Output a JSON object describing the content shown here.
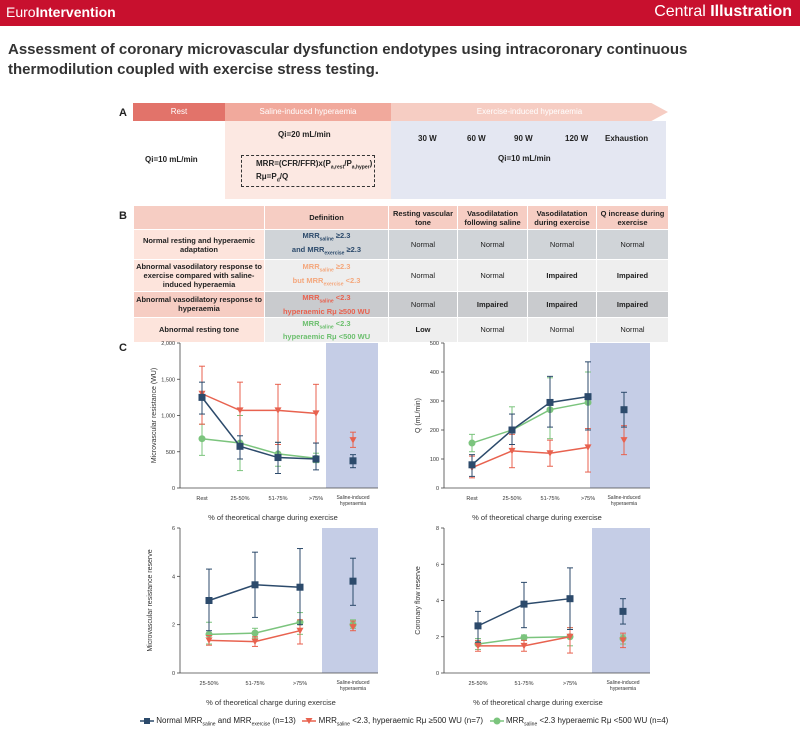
{
  "header": {
    "brand_prefix": "Euro",
    "brand_bold": "Intervention",
    "ci_prefix": "Central ",
    "ci_bold": "Illustration"
  },
  "title": "Assessment of coronary microvascular dysfunction endotypes using intracoronary continuous thermodilution coupled with exercise stress testing.",
  "panel_a": {
    "label": "A",
    "phases": [
      "Rest",
      "Saline-induced hyperaemia",
      "Exercise-induced hyperaemia"
    ],
    "rest_qi": "Qi=10 mL/min",
    "saline_qi": "Qi=20 mL/min",
    "mrr_formula": "MRR=(CFR/FFR)x(P",
    "mrr_formula_sub1": "a,rest",
    "mrr_formula_mid": "/P",
    "mrr_formula_sub2": "a,hyper",
    "mrr_formula_end": ")",
    "rmu_formula": "Rμ=P",
    "rmu_sub": "d",
    "rmu_end": "/Q",
    "exercise_levels": [
      "30 W",
      "60 W",
      "90 W",
      "120 W",
      "Exhaustion"
    ],
    "exercise_qi": "Qi=10 mL/min"
  },
  "panel_b": {
    "label": "B",
    "headers": [
      "",
      "Definition",
      "Resting vascular tone",
      "Vasodilatation following saline",
      "Vasodilatation during exercise",
      "Q increase during exercise"
    ],
    "rows": [
      {
        "name": "Normal resting and hyperaemic adaptation",
        "def1": "MRR",
        "def1_sub": "saline",
        "def1_end": " ≥2.3",
        "def2": "and MRR",
        "def2_sub": "exercise",
        "def2_end": " ≥2.3",
        "cells": [
          "Normal",
          "Normal",
          "Normal",
          "Normal"
        ]
      },
      {
        "name": "Abnormal vasodilatory response to exercise compared with saline-induced hyperaemia",
        "def1": "MRR",
        "def1_sub": "saline",
        "def1_end": " ≥2.3",
        "def2": "but MRR",
        "def2_sub": "exercise",
        "def2_end": " <2.3",
        "cells": [
          "Normal",
          "Normal",
          "Impaired",
          "Impaired"
        ]
      },
      {
        "name": "Abnormal vasodilatory response to hyperaemia",
        "def1": "MRR",
        "def1_sub": "saline",
        "def1_end": " <2.3",
        "def2": "hyperaemic Rμ ≥500 WU",
        "def2_sub": "",
        "def2_end": "",
        "cells": [
          "Normal",
          "Impaired",
          "Impaired",
          "Impaired"
        ]
      },
      {
        "name": "Abnormal resting tone",
        "def1": "MRR",
        "def1_sub": "saline",
        "def1_end": " <2.3",
        "def2": "hyperaemic Rμ <500 WU",
        "def2_sub": "",
        "def2_end": "",
        "cells": [
          "Low",
          "Normal",
          "Normal",
          "Normal"
        ]
      }
    ]
  },
  "panel_c": {
    "label": "C",
    "saline_label_1": "Saline-induced",
    "saline_label_2": "hyperaemia"
  },
  "colors": {
    "normal": "#2c4a6b",
    "high_rmu": "#e8624f",
    "low_rmu": "#7bc47d",
    "saline_zone": "#c5cde6"
  },
  "chart_data": [
    {
      "type": "line",
      "ylabel": "Microvascular resistance (WU)",
      "xlabel": "% of theoretical charge during exercise",
      "categories": [
        "Rest",
        "25-50%",
        "51-75%",
        ">75%"
      ],
      "ylim": [
        0,
        2000
      ],
      "yticks": [
        "0",
        "500",
        "1,000",
        "1,500",
        "2,000"
      ],
      "series": [
        {
          "key": "normal",
          "values": [
            1250,
            575,
            420,
            400
          ],
          "err": [
            [
              1020,
              1460
            ],
            [
              400,
              720
            ],
            [
              200,
              630
            ],
            [
              250,
              620
            ]
          ],
          "saline": 375,
          "saline_err": [
            280,
            460
          ]
        },
        {
          "key": "high_rmu",
          "values": [
            1300,
            1070,
            1070,
            1030
          ],
          "err": [
            [
              880,
              1680
            ],
            [
              560,
              1460
            ],
            [
              600,
              1430
            ],
            [
              620,
              1430
            ]
          ],
          "saline": 660,
          "saline_err": [
            560,
            770
          ]
        },
        {
          "key": "low_rmu",
          "values": [
            680,
            620,
            470,
            410
          ],
          "err": [
            [
              450,
              880
            ],
            [
              240,
              1000
            ],
            [
              300,
              630
            ],
            [
              350,
              480
            ]
          ],
          "saline": null,
          "saline_err": null
        }
      ]
    },
    {
      "type": "line",
      "ylabel": "Q (mL/min)",
      "xlabel": "% of theoretical charge during exercise",
      "categories": [
        "Rest",
        "25-50%",
        "51-75%",
        ">75%"
      ],
      "ylim": [
        0,
        500
      ],
      "yticks": [
        "0",
        "100",
        "200",
        "300",
        "400",
        "500"
      ],
      "series": [
        {
          "key": "normal",
          "values": [
            80,
            200,
            295,
            315
          ],
          "err": [
            [
              40,
              115
            ],
            [
              150,
              255
            ],
            [
              210,
              385
            ],
            [
              200,
              435
            ]
          ],
          "saline": 270,
          "saline_err": [
            210,
            330
          ]
        },
        {
          "key": "high_rmu",
          "values": [
            70,
            128,
            120,
            140
          ],
          "err": [
            [
              35,
              110
            ],
            [
              70,
              185
            ],
            [
              75,
              165
            ],
            [
              55,
              205
            ]
          ],
          "saline": 165,
          "saline_err": [
            115,
            215
          ]
        },
        {
          "key": "low_rmu",
          "values": [
            155,
            200,
            270,
            295
          ],
          "err": [
            [
              125,
              185
            ],
            [
              150,
              280
            ],
            [
              170,
              380
            ],
            [
              200,
              400
            ]
          ],
          "saline": null,
          "saline_err": null
        }
      ]
    },
    {
      "type": "line",
      "ylabel": "Microvascular resistance reserve",
      "xlabel": "% of theoretical charge during exercise",
      "categories": [
        "25-50%",
        "51-75%",
        ">75%"
      ],
      "ylim": [
        0,
        6
      ],
      "yticks": [
        "0",
        "2",
        "4",
        "6"
      ],
      "series": [
        {
          "key": "normal",
          "values": [
            3.0,
            3.65,
            3.55
          ],
          "err": [
            [
              1.75,
              4.3
            ],
            [
              2.3,
              5.0
            ],
            [
              2.0,
              5.15
            ]
          ],
          "saline": 3.8,
          "saline_err": [
            2.8,
            4.75
          ]
        },
        {
          "key": "high_rmu",
          "values": [
            1.35,
            1.3,
            1.75
          ],
          "err": [
            [
              1.15,
              1.55
            ],
            [
              1.1,
              1.5
            ],
            [
              1.2,
              2.2
            ]
          ],
          "saline": 1.9,
          "saline_err": [
            1.75,
            2.15
          ]
        },
        {
          "key": "low_rmu",
          "values": [
            1.6,
            1.65,
            2.1
          ],
          "err": [
            [
              1.2,
              2.1
            ],
            [
              1.45,
              1.85
            ],
            [
              1.6,
              2.5
            ]
          ],
          "saline": 2.0,
          "saline_err": [
            1.85,
            2.2
          ]
        }
      ]
    },
    {
      "type": "line",
      "ylabel": "Coronary flow reserve",
      "xlabel": "% of theoretical charge during exercise",
      "categories": [
        "25-50%",
        "51-75%",
        ">75%"
      ],
      "ylim": [
        0,
        8
      ],
      "yticks": [
        "0",
        "2",
        "4",
        "6",
        "8"
      ],
      "series": [
        {
          "key": "normal",
          "values": [
            2.6,
            3.8,
            4.1
          ],
          "err": [
            [
              1.7,
              3.4
            ],
            [
              2.5,
              5.0
            ],
            [
              2.4,
              5.8
            ]
          ],
          "saline": 3.4,
          "saline_err": [
            2.7,
            4.1
          ]
        },
        {
          "key": "high_rmu",
          "values": [
            1.5,
            1.5,
            2.0
          ],
          "err": [
            [
              1.2,
              1.8
            ],
            [
              1.2,
              1.8
            ],
            [
              1.1,
              2.5
            ]
          ],
          "saline": 1.8,
          "saline_err": [
            1.4,
            2.2
          ]
        },
        {
          "key": "low_rmu",
          "values": [
            1.6,
            1.95,
            2.0
          ],
          "err": [
            [
              1.3,
              1.9
            ],
            [
              1.8,
              2.1
            ],
            [
              1.5,
              2.5
            ]
          ],
          "saline": 1.9,
          "saline_err": [
            1.6,
            2.1
          ]
        }
      ]
    }
  ],
  "legend": {
    "normal_a": "Normal MRR",
    "normal_sub1": "saline",
    "normal_b": " and MRR",
    "normal_sub2": "exercise",
    "normal_n": " (n=13)",
    "high_a": "MRR",
    "high_sub": "saline",
    "high_b": " <2.3, hyperaemic Rμ ≥500 WU (n=7)",
    "low_a": "MRR",
    "low_sub": "saline",
    "low_b": " <2.3 hyperaemic Rμ <500 WU (n=4)"
  }
}
